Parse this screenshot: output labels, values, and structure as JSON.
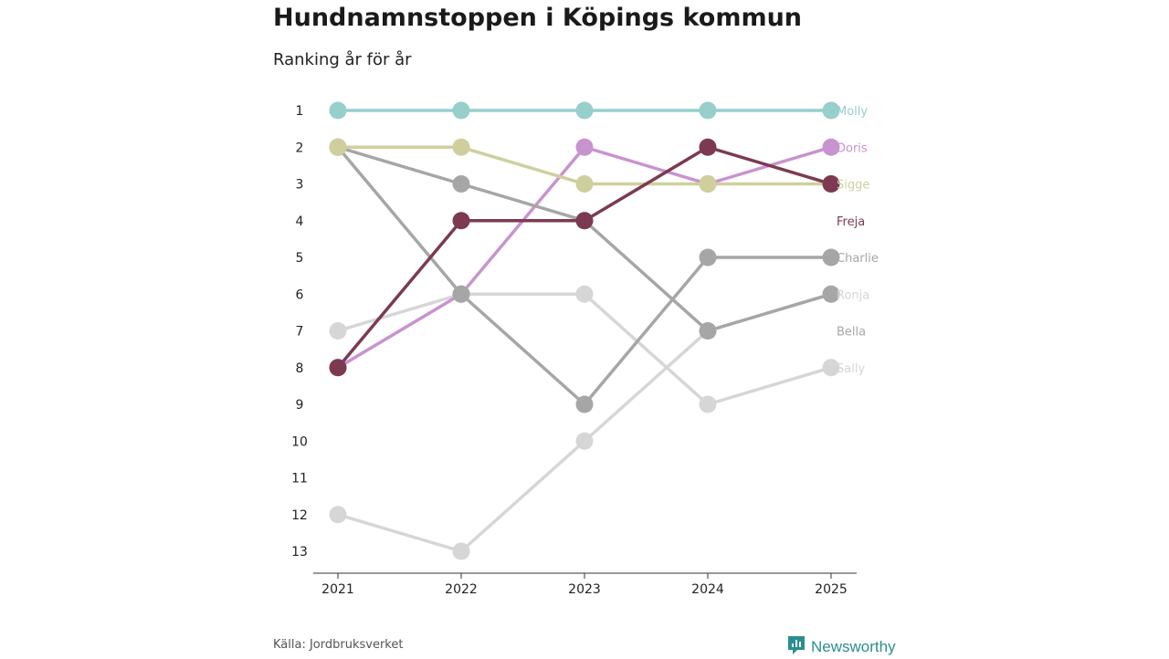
{
  "header": {
    "title": "Hundnamnstoppen i Köpings kommun",
    "subtitle": "Ranking år för år"
  },
  "footer": {
    "source": "Källa: Jordbruksverket",
    "brand": "Newsworthy",
    "brand_icon": "newsworthy-logo-icon",
    "brand_color": "#2b8e8e"
  },
  "chart_data": {
    "type": "line",
    "title": "Hundnamnstoppen i Köpings kommun",
    "subtitle": "Ranking år för år",
    "xlabel": "",
    "ylabel": "",
    "x": [
      "2021",
      "2022",
      "2023",
      "2024",
      "2025"
    ],
    "ylim": [
      1,
      13
    ],
    "y_inverted": true,
    "y_ticks": [
      "1",
      "2",
      "3",
      "4",
      "5",
      "6",
      "7",
      "8",
      "9",
      "10",
      "11",
      "12",
      "13"
    ],
    "grid": false,
    "series": [
      {
        "name": "Molly",
        "color": "#96cfcc",
        "values": [
          1,
          1,
          1,
          1,
          1
        ]
      },
      {
        "name": "Doris",
        "color": "#c993cf",
        "values": [
          8,
          6,
          2,
          3,
          2
        ]
      },
      {
        "name": "Sigge",
        "color": "#cfcf9e",
        "values": [
          2,
          2,
          3,
          3,
          3
        ]
      },
      {
        "name": "Freja",
        "color": "#7c3a52",
        "values": [
          8,
          4,
          4,
          2,
          3
        ]
      },
      {
        "name": "Charlie",
        "color": "#a6a6a6",
        "values": [
          2,
          6,
          9,
          5,
          5
        ]
      },
      {
        "name": "Ronja",
        "color": "#d6d6d6",
        "values": [
          12,
          13,
          10,
          7,
          6
        ]
      },
      {
        "name": "Bella",
        "color": "#a6a6a6",
        "values": [
          2,
          3,
          4,
          7,
          6
        ]
      },
      {
        "name": "Sally",
        "color": "#d6d6d6",
        "values": [
          7,
          6,
          6,
          9,
          8
        ]
      }
    ],
    "end_labels": [
      {
        "name": "Molly",
        "color": "#96cfcc",
        "rank": 1
      },
      {
        "name": "Doris",
        "color": "#c993cf",
        "rank": 2
      },
      {
        "name": "Sigge",
        "color": "#cfcf9e",
        "rank": 3
      },
      {
        "name": "Freja",
        "color": "#7c3a52",
        "rank": 4
      },
      {
        "name": "Charlie",
        "color": "#a6a6a6",
        "rank": 5
      },
      {
        "name": "Ronja",
        "color": "#d6d6d6",
        "rank": 6
      },
      {
        "name": "Bella",
        "color": "#a6a6a6",
        "rank": 7
      },
      {
        "name": "Sally",
        "color": "#d6d6d6",
        "rank": 8
      }
    ],
    "tie_color": "#707078"
  }
}
